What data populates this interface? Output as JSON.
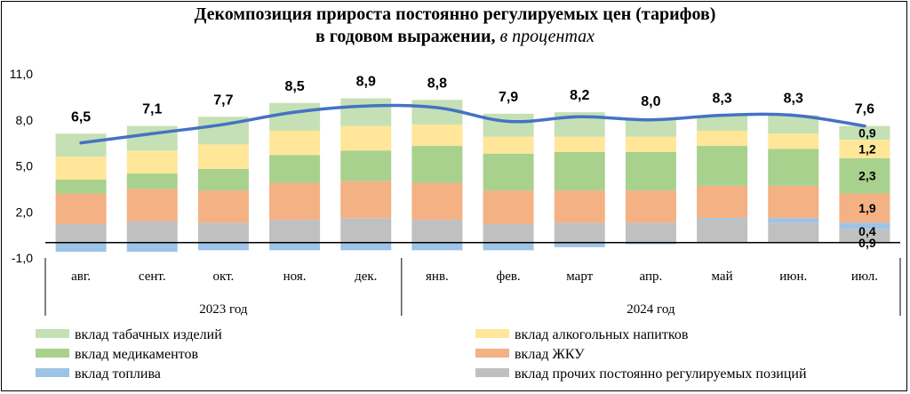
{
  "chart_data": {
    "type": "bar",
    "stacked": true,
    "title_line1": "Декомпозиция прироста постоянно регулируемых цен (тарифов)",
    "title_line2": "в годовом выражении,",
    "title_unit": "в процентах",
    "categories": [
      "авг.",
      "сент.",
      "окт.",
      "ноя.",
      "дек.",
      "янв.",
      "фев.",
      "март",
      "апр.",
      "май",
      "июн.",
      "июл."
    ],
    "year_groups": [
      {
        "label": "2023 год",
        "start": 0,
        "end": 4
      },
      {
        "label": "2024 год",
        "start": 5,
        "end": 11
      }
    ],
    "ylim": [
      -1.0,
      11.0
    ],
    "yticks": [
      -1.0,
      2.0,
      5.0,
      8.0,
      11.0
    ],
    "ytick_labels": [
      "-1,0",
      "2,0",
      "5,0",
      "8,0",
      "11,0"
    ],
    "series": [
      {
        "name": "вклад прочих постоянно регулируемых  позиций",
        "color": "#c0c0c0",
        "values": [
          1.2,
          1.4,
          1.3,
          1.5,
          1.6,
          1.5,
          1.2,
          1.3,
          1.3,
          1.5,
          1.3,
          0.9
        ]
      },
      {
        "name": "вклад топлива",
        "color": "#9dc3e6",
        "values": [
          -0.6,
          -0.6,
          -0.5,
          -0.5,
          -0.5,
          -0.5,
          -0.5,
          -0.3,
          -0.1,
          0.1,
          0.3,
          0.4
        ]
      },
      {
        "name": "вклад ЖКУ",
        "color": "#f4b183",
        "values": [
          2.0,
          2.1,
          2.1,
          2.4,
          2.4,
          2.4,
          2.2,
          2.1,
          2.1,
          2.1,
          2.1,
          1.9
        ]
      },
      {
        "name": "вклад медикаментов",
        "color": "#a9d18e",
        "values": [
          0.9,
          1.0,
          1.4,
          1.8,
          2.0,
          2.4,
          2.4,
          2.5,
          2.5,
          2.6,
          2.4,
          2.3
        ]
      },
      {
        "name": "вклад алкогольных напитков",
        "color": "#ffe699",
        "values": [
          1.5,
          1.5,
          1.6,
          1.6,
          1.6,
          1.4,
          1.1,
          1.0,
          1.0,
          1.0,
          1.0,
          1.2
        ]
      },
      {
        "name": "вклад табачных изделий",
        "color": "#c5e0b4",
        "values": [
          1.5,
          1.6,
          1.8,
          1.8,
          1.8,
          1.6,
          1.5,
          1.6,
          1.2,
          1.0,
          1.2,
          0.9
        ]
      }
    ],
    "total": {
      "name": "total",
      "color": "#4472c4",
      "values": [
        6.5,
        7.1,
        7.7,
        8.5,
        8.9,
        8.8,
        7.9,
        8.2,
        8.0,
        8.3,
        8.3,
        7.6
      ],
      "labels": [
        "6,5",
        "7,1",
        "7,7",
        "8,5",
        "8,9",
        "8,8",
        "7,9",
        "8,2",
        "8,0",
        "8,3",
        "8,3",
        "7,6"
      ]
    },
    "last_bar_labels": [
      {
        "series": 0,
        "text": "0,9"
      },
      {
        "series": 1,
        "text": "0,4"
      },
      {
        "series": 2,
        "text": "1,9"
      },
      {
        "series": 3,
        "text": "2,3"
      },
      {
        "series": 4,
        "text": "1,2"
      },
      {
        "series": 5,
        "text": "0,9"
      }
    ],
    "legend": [
      {
        "series": 5,
        "label": "вклад табачных изделий"
      },
      {
        "series": 4,
        "label": "вклад алкогольных напитков"
      },
      {
        "series": 3,
        "label": "вклад медикаментов"
      },
      {
        "series": 2,
        "label": "вклад ЖКУ"
      },
      {
        "series": 1,
        "label": "вклад топлива"
      },
      {
        "series": 0,
        "label": "вклад прочих постоянно регулируемых  позиций"
      }
    ]
  }
}
